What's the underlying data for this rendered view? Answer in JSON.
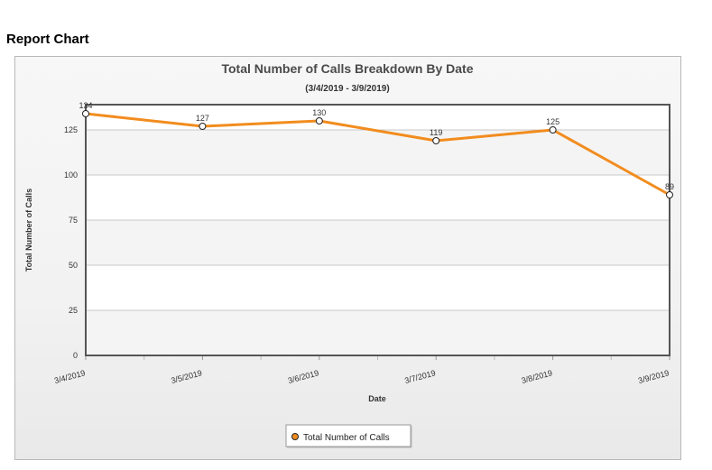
{
  "page": {
    "heading": "Report Chart"
  },
  "chart_data": {
    "type": "line",
    "title": "Total Number of Calls Breakdown By Date",
    "subtitle": "(3/4/2019 - 3/9/2019)",
    "xlabel": "Date",
    "ylabel": "Total Number of Calls",
    "categories": [
      "3/4/2019",
      "3/5/2019",
      "3/6/2019",
      "3/7/2019",
      "3/8/2019",
      "3/9/2019"
    ],
    "series": [
      {
        "name": "Total Number of Calls",
        "values": [
          134,
          127,
          130,
          119,
          125,
          89
        ],
        "color": "#f28c1e"
      }
    ],
    "yticks": [
      0,
      25,
      50,
      75,
      100,
      125
    ],
    "ylim": [
      0,
      139
    ],
    "grid": true,
    "legend": "bottom"
  }
}
